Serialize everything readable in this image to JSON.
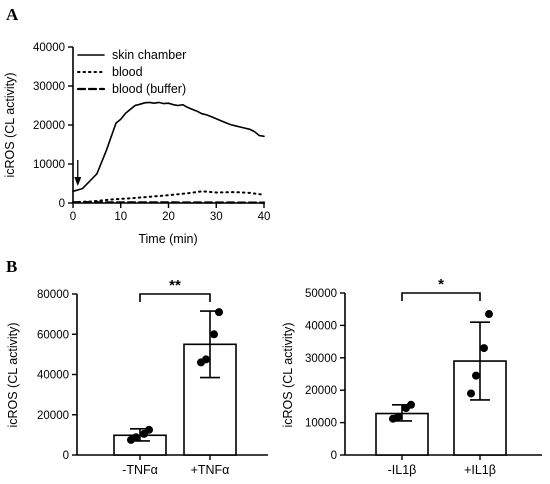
{
  "panels": {
    "a_label": "A",
    "b_label": "B"
  },
  "chart_data": [
    {
      "id": "A",
      "type": "line",
      "xlabel": "Time (min)",
      "ylabel": "icROS (CL activity)",
      "xlim": [
        0,
        40
      ],
      "ylim": [
        0,
        40000
      ],
      "xticks": [
        0,
        10,
        20,
        30,
        40
      ],
      "yticks": [
        0,
        10000,
        20000,
        30000,
        40000
      ],
      "arrow_at_x": 1,
      "legend_position": "top-left",
      "series": [
        {
          "name": "skin chamber",
          "style": "solid",
          "x": [
            0,
            2,
            5,
            7,
            8,
            9,
            10,
            11,
            12,
            13,
            14,
            15,
            16,
            17,
            18,
            19,
            20,
            21,
            22,
            23,
            24,
            25,
            26,
            27,
            28,
            29,
            30,
            31,
            32,
            33,
            34,
            35,
            36,
            37,
            38,
            39,
            40
          ],
          "y": [
            3000,
            3700,
            7500,
            13500,
            17000,
            20500,
            21500,
            23000,
            24000,
            25000,
            25300,
            25700,
            25800,
            25600,
            25800,
            25500,
            25600,
            25200,
            25000,
            25200,
            24500,
            24000,
            23500,
            22900,
            22600,
            22100,
            21600,
            21100,
            20600,
            20100,
            19800,
            19500,
            19200,
            18900,
            18300,
            17300,
            17100
          ]
        },
        {
          "name": "blood",
          "style": "dotted",
          "x": [
            0,
            4,
            8,
            12,
            16,
            20,
            24,
            27,
            30,
            34,
            37,
            40
          ],
          "y": [
            200,
            400,
            900,
            1200,
            1600,
            2000,
            2500,
            3000,
            2700,
            2800,
            2600,
            2100
          ]
        },
        {
          "name": "blood (buffer)",
          "style": "dashed",
          "x": [
            0,
            10,
            20,
            30,
            40
          ],
          "y": [
            200,
            150,
            150,
            120,
            100
          ]
        }
      ]
    },
    {
      "id": "B1",
      "type": "bar",
      "ylabel": "icROS (CL activity)",
      "ylim": [
        0,
        80000
      ],
      "yticks": [
        0,
        20000,
        40000,
        60000,
        80000
      ],
      "categories": [
        "-TNFα",
        "+TNFα"
      ],
      "values": [
        9800,
        55000
      ],
      "error": [
        [
          7000,
          13000
        ],
        [
          38500,
          71500
        ]
      ],
      "points": [
        [
          7500,
          8800,
          10500,
          12500
        ],
        [
          46000,
          47500,
          60000,
          71000
        ]
      ],
      "significance": "**"
    },
    {
      "id": "B2",
      "type": "bar",
      "ylabel": "icROS (CL activity)",
      "ylim": [
        0,
        50000
      ],
      "yticks": [
        0,
        10000,
        20000,
        30000,
        40000,
        50000
      ],
      "categories": [
        "-IL1β",
        "+IL1β"
      ],
      "values": [
        12800,
        29000
      ],
      "error": [
        [
          10500,
          15500
        ],
        [
          17000,
          41000
        ]
      ],
      "points": [
        [
          11200,
          11800,
          14500,
          15500
        ],
        [
          19000,
          24500,
          33000,
          43500
        ]
      ],
      "significance": "*"
    }
  ]
}
